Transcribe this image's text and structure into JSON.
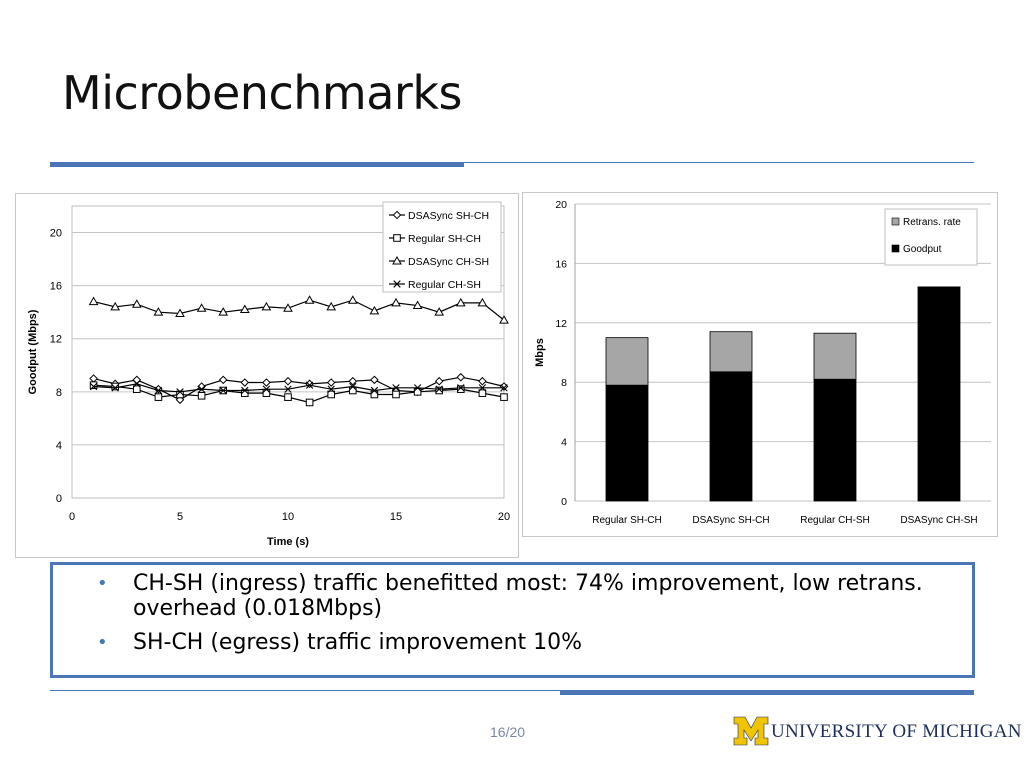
{
  "slide": {
    "title": "Microbenchmarks",
    "page_number": "16/20",
    "bullets": [
      "CH-SH (ingress) traffic benefitted most: 74% improvement, low retrans. overhead (0.018Mbps)",
      "SH-CH (egress) traffic improvement 10%"
    ],
    "logo": {
      "text": "UNIVERSITY OF MICHIGAN",
      "letter": "M",
      "color_maize": "#f1c400",
      "color_blue": "#1e2f5a"
    },
    "accent_color": "#4a76b6"
  },
  "chart_data": [
    {
      "type": "line",
      "title": "",
      "xlabel": "Time (s)",
      "ylabel": "Goodput (Mbps)",
      "xlim": [
        0,
        20
      ],
      "ylim": [
        0,
        22
      ],
      "xticks": [
        0,
        5,
        10,
        15,
        20
      ],
      "yticks": [
        0,
        4,
        8,
        12,
        16,
        20
      ],
      "grid": true,
      "legend_position": "top-right",
      "x": [
        1,
        2,
        3,
        4,
        5,
        6,
        7,
        8,
        9,
        10,
        11,
        12,
        13,
        14,
        15,
        16,
        17,
        18,
        19,
        20
      ],
      "series": [
        {
          "name": "DSASync SH-CH",
          "marker": "diamond",
          "values": [
            9.0,
            8.6,
            8.9,
            8.2,
            7.4,
            8.4,
            8.9,
            8.7,
            8.7,
            8.8,
            8.6,
            8.7,
            8.8,
            8.9,
            8.1,
            8.0,
            8.8,
            9.1,
            8.8,
            8.4
          ]
        },
        {
          "name": "Regular SH-CH",
          "marker": "square",
          "values": [
            8.5,
            8.4,
            8.2,
            7.6,
            7.8,
            7.7,
            8.1,
            7.9,
            7.9,
            7.6,
            7.2,
            7.8,
            8.1,
            7.8,
            7.8,
            8.0,
            8.1,
            8.2,
            7.9,
            7.6
          ]
        },
        {
          "name": "DSASync CH-SH",
          "marker": "triangle",
          "values": [
            14.8,
            14.4,
            14.6,
            14.0,
            13.9,
            14.3,
            14.0,
            14.2,
            14.4,
            14.3,
            14.9,
            14.4,
            14.9,
            14.1,
            14.7,
            14.5,
            14.0,
            14.7,
            14.7,
            13.4
          ]
        },
        {
          "name": "Regular CH-SH",
          "marker": "x",
          "values": [
            8.4,
            8.3,
            8.6,
            8.1,
            8.0,
            8.2,
            8.1,
            8.1,
            8.2,
            8.2,
            8.5,
            8.2,
            8.4,
            8.1,
            8.3,
            8.3,
            8.2,
            8.3,
            8.3,
            8.3
          ]
        }
      ]
    },
    {
      "type": "bar",
      "stacked": true,
      "title": "",
      "xlabel": "",
      "ylabel": "Mbps",
      "ylim": [
        0,
        20
      ],
      "yticks": [
        0,
        4,
        8,
        12,
        16,
        20
      ],
      "grid": true,
      "legend_position": "top-right",
      "categories": [
        "Regular SH-CH",
        "DSASync SH-CH",
        "Regular CH-SH",
        "DSASync CH-SH"
      ],
      "series": [
        {
          "name": "Goodput",
          "color": "#000000",
          "values": [
            7.8,
            8.7,
            8.2,
            14.4
          ]
        },
        {
          "name": "Retrans. rate",
          "color": "#a6a6a6",
          "values": [
            3.2,
            2.7,
            3.1,
            0.018
          ]
        }
      ]
    }
  ]
}
